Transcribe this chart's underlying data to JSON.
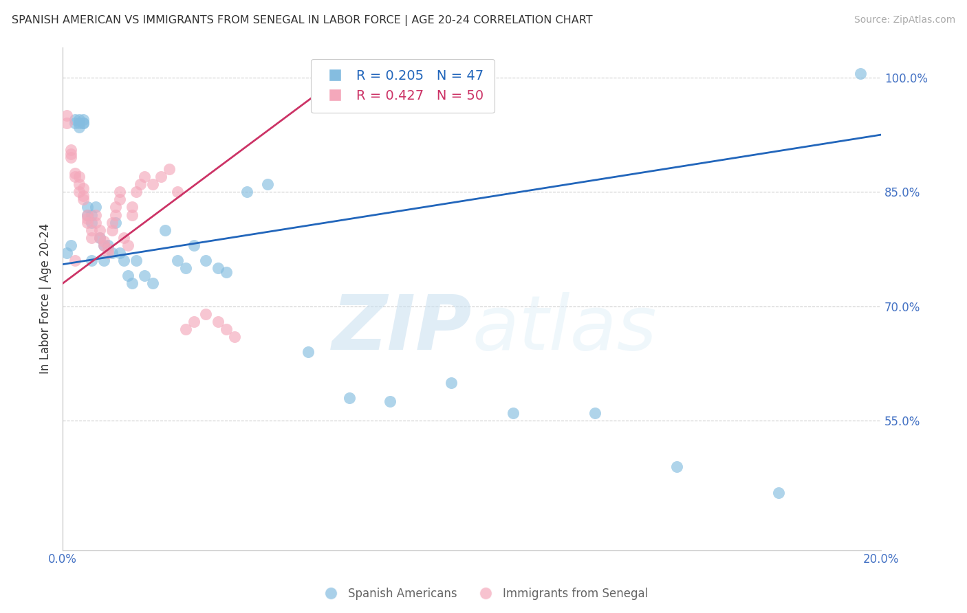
{
  "title": "SPANISH AMERICAN VS IMMIGRANTS FROM SENEGAL IN LABOR FORCE | AGE 20-24 CORRELATION CHART",
  "source": "Source: ZipAtlas.com",
  "ylabel": "In Labor Force | Age 20-24",
  "xlim": [
    0.0,
    0.2
  ],
  "ylim": [
    0.38,
    1.04
  ],
  "yticks": [
    0.55,
    0.7,
    0.85,
    1.0
  ],
  "ytick_labels": [
    "55.0%",
    "70.0%",
    "85.0%",
    "100.0%"
  ],
  "xticks": [
    0.0,
    0.05,
    0.1,
    0.15,
    0.2
  ],
  "xtick_labels": [
    "0.0%",
    "",
    "",
    "",
    "20.0%"
  ],
  "blue_R": 0.205,
  "blue_N": 47,
  "pink_R": 0.427,
  "pink_N": 50,
  "blue_color": "#85bde0",
  "pink_color": "#f4a8bb",
  "blue_line_color": "#2266bb",
  "pink_line_color": "#cc3366",
  "legend_label_blue": "Spanish Americans",
  "legend_label_pink": "Immigrants from Senegal",
  "watermark_zip": "ZIP",
  "watermark_atlas": "atlas",
  "blue_x": [
    0.001,
    0.002,
    0.003,
    0.003,
    0.004,
    0.004,
    0.004,
    0.005,
    0.005,
    0.005,
    0.006,
    0.006,
    0.007,
    0.007,
    0.007,
    0.008,
    0.009,
    0.01,
    0.01,
    0.011,
    0.012,
    0.013,
    0.014,
    0.015,
    0.016,
    0.017,
    0.018,
    0.02,
    0.022,
    0.025,
    0.028,
    0.03,
    0.032,
    0.035,
    0.038,
    0.04,
    0.045,
    0.05,
    0.06,
    0.07,
    0.08,
    0.095,
    0.11,
    0.13,
    0.15,
    0.175,
    0.195
  ],
  "blue_y": [
    0.77,
    0.78,
    0.94,
    0.945,
    0.935,
    0.94,
    0.945,
    0.94,
    0.945,
    0.94,
    0.82,
    0.83,
    0.82,
    0.81,
    0.76,
    0.83,
    0.79,
    0.78,
    0.76,
    0.78,
    0.77,
    0.81,
    0.77,
    0.76,
    0.74,
    0.73,
    0.76,
    0.74,
    0.73,
    0.8,
    0.76,
    0.75,
    0.78,
    0.76,
    0.75,
    0.745,
    0.85,
    0.86,
    0.64,
    0.58,
    0.575,
    0.6,
    0.56,
    0.56,
    0.49,
    0.455,
    1.005
  ],
  "pink_x": [
    0.001,
    0.001,
    0.002,
    0.002,
    0.002,
    0.003,
    0.003,
    0.003,
    0.004,
    0.004,
    0.004,
    0.005,
    0.005,
    0.005,
    0.006,
    0.006,
    0.006,
    0.007,
    0.007,
    0.008,
    0.008,
    0.009,
    0.009,
    0.01,
    0.01,
    0.011,
    0.011,
    0.012,
    0.012,
    0.013,
    0.013,
    0.014,
    0.014,
    0.015,
    0.016,
    0.017,
    0.017,
    0.018,
    0.019,
    0.02,
    0.022,
    0.024,
    0.026,
    0.028,
    0.03,
    0.032,
    0.035,
    0.038,
    0.04,
    0.042
  ],
  "pink_y": [
    0.94,
    0.95,
    0.895,
    0.9,
    0.905,
    0.87,
    0.875,
    0.76,
    0.87,
    0.86,
    0.85,
    0.855,
    0.84,
    0.845,
    0.81,
    0.815,
    0.82,
    0.79,
    0.8,
    0.82,
    0.81,
    0.79,
    0.8,
    0.78,
    0.785,
    0.77,
    0.775,
    0.8,
    0.81,
    0.82,
    0.83,
    0.84,
    0.85,
    0.79,
    0.78,
    0.82,
    0.83,
    0.85,
    0.86,
    0.87,
    0.86,
    0.87,
    0.88,
    0.85,
    0.67,
    0.68,
    0.69,
    0.68,
    0.67,
    0.66
  ],
  "blue_line_x": [
    0.0,
    0.2
  ],
  "blue_line_y": [
    0.755,
    0.925
  ],
  "pink_line_x": [
    0.0,
    0.065
  ],
  "pink_line_y": [
    0.73,
    0.99
  ]
}
